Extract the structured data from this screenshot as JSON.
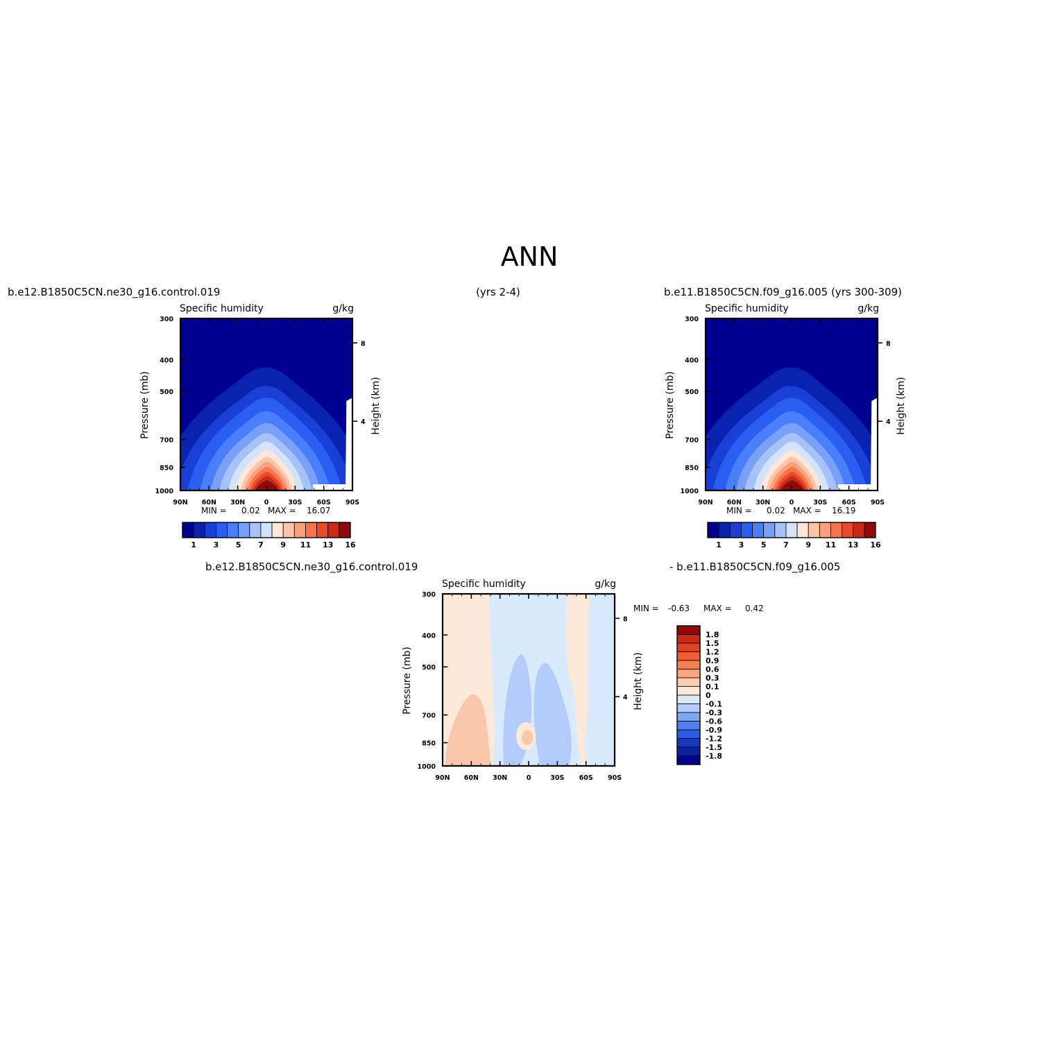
{
  "page": {
    "season": "ANN",
    "case1": "b.e12.B1850C5CN.ne30_g16.control.019",
    "years1": "(yrs 2-4)",
    "case2": "b.e11.B1850C5CN.f09_g16.005 (yrs 300-309)",
    "diff_left": "b.e12.B1850C5CN.ne30_g16.control.019",
    "diff_right": "- b.e11.B1850C5CN.f09_g16.005"
  },
  "panel_text": {
    "title": "Specific humidity",
    "units": "g/kg",
    "ylabel": "Pressure (mb)",
    "y2label": "Height (km)",
    "min_label": "MIN =",
    "max_label": "MAX ="
  },
  "chart_data": [
    {
      "type": "heatmap",
      "title": "Specific humidity",
      "units": "g/kg",
      "xlabel": "",
      "ylabel": "Pressure (mb)",
      "y2label": "Height (km)",
      "x_ticks": [
        "90N",
        "60N",
        "30N",
        "0",
        "30S",
        "60S",
        "90S"
      ],
      "y_ticks": [
        300,
        400,
        500,
        700,
        850,
        1000
      ],
      "y2_ticks": [
        8,
        4
      ],
      "min": "0.02",
      "max": "16.07",
      "colorbar_labels": [
        "1",
        "3",
        "5",
        "7",
        "9",
        "11",
        "13",
        "16"
      ],
      "peak_lat": 0,
      "peak_value": 16.07
    },
    {
      "type": "heatmap",
      "title": "Specific humidity",
      "units": "g/kg",
      "xlabel": "",
      "ylabel": "Pressure (mb)",
      "y2label": "Height (km)",
      "x_ticks": [
        "90N",
        "60N",
        "30N",
        "0",
        "30S",
        "60S",
        "90S"
      ],
      "y_ticks": [
        300,
        400,
        500,
        700,
        850,
        1000
      ],
      "y2_ticks": [
        8,
        4
      ],
      "min": "0.02",
      "max": "16.19",
      "colorbar_labels": [
        "1",
        "3",
        "5",
        "7",
        "9",
        "11",
        "13",
        "16"
      ],
      "peak_lat": 0,
      "peak_value": 16.19
    },
    {
      "type": "heatmap",
      "title": "Specific humidity",
      "units": "g/kg",
      "xlabel": "",
      "ylabel": "Pressure (mb)",
      "y2label": "Height (km)",
      "x_ticks": [
        "90N",
        "60N",
        "30N",
        "0",
        "30S",
        "60S",
        "90S"
      ],
      "y_ticks": [
        300,
        400,
        500,
        700,
        850,
        1000
      ],
      "y2_ticks": [
        8,
        4
      ],
      "min": "-0.63",
      "max": "0.42",
      "colorbar_labels": [
        "1.8",
        "1.5",
        "1.2",
        "0.9",
        "0.6",
        "0.3",
        "0.1",
        "0",
        "-0.1",
        "-0.3",
        "-0.6",
        "-0.9",
        "-1.2",
        "-1.5",
        "-1.8"
      ]
    }
  ],
  "colors": {
    "abs_levels": [
      "#00008f",
      "#0a22b0",
      "#1a3fd6",
      "#2a5ef2",
      "#4a7efa",
      "#7ba0f8",
      "#a6c2f7",
      "#d2e3fb",
      "#fde7d8",
      "#fcc5aa",
      "#fb9f7c",
      "#f6754f",
      "#e94a2c",
      "#c72a16",
      "#8f0a0a"
    ],
    "diff_levels": [
      "#8f0a0a",
      "#c72a16",
      "#e04020",
      "#f45c34",
      "#f7804f",
      "#fca47e",
      "#fdcbb0",
      "#fde9da",
      "#d9eafd",
      "#b4ccfb",
      "#7ea6f6",
      "#4f7ff0",
      "#2b5be3",
      "#1438c4",
      "#0a229e",
      "#00008f"
    ],
    "diff_pos_light": "#fde9da",
    "diff_pos_mid": "#fac7ad",
    "diff_neg_light": "#d9eafd",
    "diff_neg_mid": "#b4ccfb"
  }
}
